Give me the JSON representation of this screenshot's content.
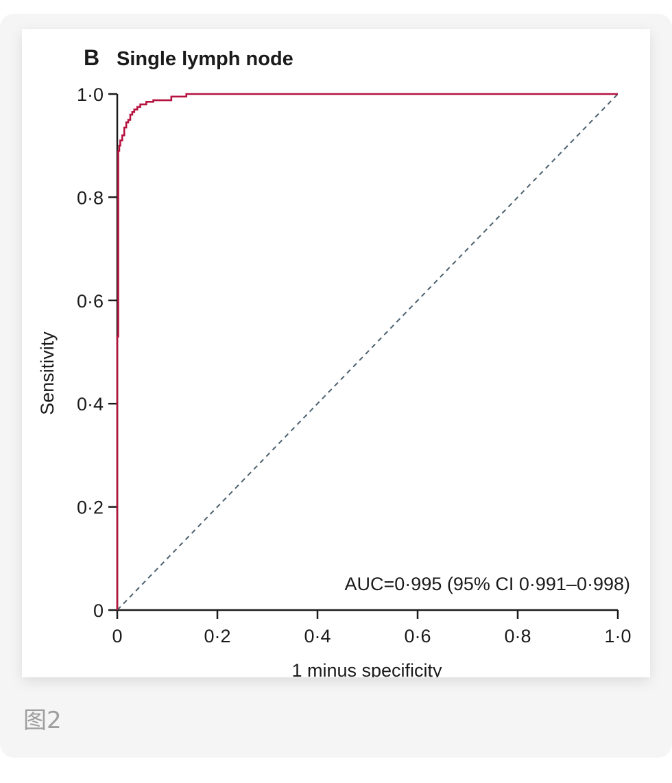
{
  "caption": "图2",
  "chart_data": {
    "type": "line",
    "panel_label": "B",
    "title": "Single lymph node",
    "xlabel": "1 minus specificity",
    "ylabel": "Sensitivity",
    "xlim": [
      0,
      1
    ],
    "ylim": [
      0,
      1
    ],
    "x_ticks": [
      0,
      0.2,
      0.4,
      0.6,
      0.8,
      1.0
    ],
    "x_tick_labels": [
      "0",
      "0·2",
      "0·4",
      "0·6",
      "0·8",
      "1·0"
    ],
    "y_ticks": [
      0,
      0.2,
      0.4,
      0.6,
      0.8,
      1.0
    ],
    "y_tick_labels": [
      "0",
      "0·2",
      "0·4",
      "0·6",
      "0·8",
      "1·0"
    ],
    "grid": false,
    "annotation": "AUC=0·995 (95% CI 0·991–0·998)",
    "colors": {
      "roc": "#b5123f",
      "reference": "#4a5f6e",
      "axis": "#1a1a1a"
    },
    "series": [
      {
        "style": "solid-step",
        "x": [
          0,
          0,
          0.002,
          0.002,
          0.004,
          0.004,
          0.006,
          0.006,
          0.01,
          0.01,
          0.014,
          0.014,
          0.018,
          0.018,
          0.022,
          0.022,
          0.026,
          0.026,
          0.03,
          0.03,
          0.034,
          0.034,
          0.04,
          0.04,
          0.046,
          0.046,
          0.058,
          0.058,
          0.072,
          0.072,
          0.108,
          0.108,
          0.138,
          0.138,
          1.0
        ],
        "y": [
          0,
          0.53,
          0.53,
          0.89,
          0.89,
          0.9,
          0.9,
          0.91,
          0.91,
          0.92,
          0.92,
          0.935,
          0.935,
          0.945,
          0.945,
          0.95,
          0.95,
          0.96,
          0.96,
          0.965,
          0.965,
          0.97,
          0.97,
          0.975,
          0.975,
          0.98,
          0.98,
          0.985,
          0.985,
          0.988,
          0.988,
          0.995,
          0.995,
          1.0,
          1.0
        ]
      },
      {
        "style": "dashed",
        "x": [
          0,
          1.0
        ],
        "y": [
          0,
          1.0
        ]
      }
    ]
  }
}
